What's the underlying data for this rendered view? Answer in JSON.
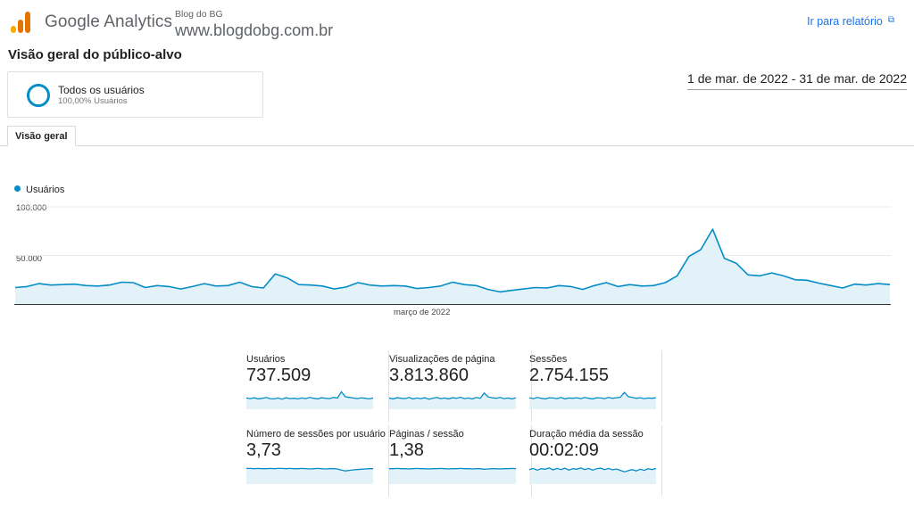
{
  "header": {
    "product_name": "Google Analytics",
    "account_name": "Blog do BG",
    "property_name": "www.blogdobg.com.br",
    "report_link": "Ir para relatório",
    "logo_colors": [
      "#f9ab00",
      "#e37400",
      "#e37400"
    ]
  },
  "page": {
    "title": "Visão geral do público-alvo",
    "date_range": "1 de mar. de 2022 - 31 de mar. de 2022"
  },
  "segment": {
    "name": "Todos os usuários",
    "detail": "100,00% Usuários",
    "color": "#058dc7"
  },
  "tabs": [
    {
      "label": "Visão geral",
      "active": true
    }
  ],
  "chart_data": {
    "type": "area",
    "title": "",
    "series": [
      {
        "name": "Usuários",
        "color": "#058dc7",
        "values": [
          17000,
          18000,
          21000,
          19500,
          20000,
          20500,
          19000,
          18500,
          19500,
          22500,
          22000,
          17000,
          19000,
          18000,
          15500,
          18000,
          21000,
          18500,
          19000,
          22500,
          18000,
          16500,
          31000,
          27000,
          20000,
          19500,
          18500,
          15500,
          17500,
          22000,
          19500,
          18500,
          19000,
          18500,
          16000,
          17000,
          18500,
          22500,
          20000,
          19000,
          15000,
          12500,
          14000,
          15500,
          17000,
          16500,
          19000,
          18000,
          15000,
          19000,
          22000,
          18000,
          20000,
          18500,
          19000,
          22000,
          29000,
          49000,
          56000,
          77000,
          47000,
          42000,
          30000,
          29000,
          32000,
          29000,
          25000,
          24500,
          21500,
          19000,
          16500,
          20500,
          19500,
          21000,
          20000
        ]
      }
    ],
    "x_label": "março de 2022",
    "y_ticks": [
      "100.000",
      "50.000"
    ],
    "ylim": [
      0,
      100000
    ],
    "grid": true,
    "legend": "top-left"
  },
  "metrics": [
    {
      "label": "Usuários",
      "value": "737.509",
      "trend": [
        40,
        38,
        41,
        37,
        39,
        42,
        38,
        37,
        40,
        36,
        41,
        38,
        39,
        37,
        40,
        38,
        42,
        39,
        37,
        41,
        39,
        38,
        42,
        40,
        62,
        45,
        42,
        40,
        38,
        41,
        39,
        37,
        40
      ]
    },
    {
      "label": "Visualizações de página",
      "value": "3.813.860",
      "trend": [
        40,
        37,
        41,
        39,
        38,
        42,
        37,
        40,
        38,
        41,
        36,
        39,
        42,
        38,
        40,
        37,
        41,
        39,
        43,
        38,
        40,
        37,
        42,
        39,
        58,
        44,
        41,
        39,
        42,
        38,
        40,
        37,
        41
      ]
    },
    {
      "label": "Sessões",
      "value": "2.754.155",
      "trend": [
        41,
        38,
        42,
        39,
        37,
        41,
        40,
        38,
        42,
        37,
        40,
        39,
        41,
        38,
        42,
        39,
        37,
        41,
        40,
        38,
        42,
        39,
        41,
        43,
        60,
        45,
        42,
        39,
        41,
        38,
        40,
        39,
        41
      ]
    },
    {
      "label": "Número de sessões por usuário",
      "value": "3,73",
      "trend": [
        56,
        56,
        55,
        56,
        55,
        55,
        56,
        55,
        56,
        56,
        55,
        56,
        55,
        55,
        56,
        55,
        54,
        55,
        56,
        55,
        54,
        55,
        55,
        54,
        50,
        47,
        49,
        51,
        52,
        53,
        54,
        55,
        55
      ]
    },
    {
      "label": "Páginas / sessão",
      "value": "1,38",
      "trend": [
        55,
        55,
        56,
        55,
        55,
        54,
        55,
        56,
        55,
        55,
        54,
        55,
        55,
        56,
        55,
        54,
        55,
        55,
        56,
        55,
        55,
        54,
        55,
        55,
        53,
        54,
        55,
        55,
        54,
        55,
        55,
        56,
        55
      ]
    },
    {
      "label": "Duração média da sessão",
      "value": "00:02:09",
      "trend": [
        52,
        56,
        50,
        55,
        53,
        58,
        51,
        56,
        52,
        57,
        50,
        55,
        53,
        58,
        52,
        56,
        50,
        55,
        57,
        52,
        56,
        51,
        54,
        49,
        44,
        48,
        52,
        47,
        53,
        49,
        55,
        52,
        56
      ]
    }
  ]
}
